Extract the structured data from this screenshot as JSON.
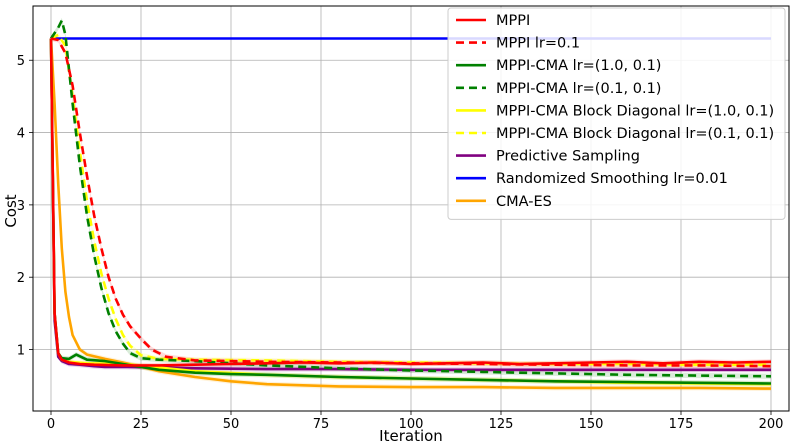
{
  "chart_data": {
    "type": "line",
    "title": "",
    "xlabel": "Iteration",
    "ylabel": "Cost",
    "xlim": [
      -5,
      205
    ],
    "ylim": [
      0.15,
      5.75
    ],
    "xticks": [
      0,
      25,
      50,
      75,
      100,
      125,
      150,
      175,
      200
    ],
    "yticks": [
      1,
      2,
      3,
      4,
      5
    ],
    "grid": true,
    "legend_position": "top-right",
    "series": [
      {
        "name": "MPPI",
        "color": "#ff0000",
        "dash": "solid",
        "x": [
          0,
          1,
          2,
          3,
          5,
          8,
          12,
          20,
          30,
          40,
          50,
          60,
          70,
          80,
          90,
          100,
          110,
          120,
          130,
          140,
          150,
          160,
          170,
          180,
          190,
          200
        ],
        "y": [
          5.3,
          1.5,
          0.95,
          0.86,
          0.82,
          0.8,
          0.79,
          0.78,
          0.78,
          0.79,
          0.8,
          0.81,
          0.82,
          0.81,
          0.82,
          0.8,
          0.81,
          0.82,
          0.8,
          0.81,
          0.82,
          0.83,
          0.81,
          0.83,
          0.82,
          0.83
        ]
      },
      {
        "name": "MPPI lr=0.1",
        "color": "#ff0000",
        "dash": "dashed",
        "x": [
          0,
          2,
          4,
          6,
          8,
          10,
          12,
          14,
          16,
          18,
          20,
          22,
          25,
          28,
          32,
          40,
          60,
          80,
          100,
          120,
          140,
          160,
          180,
          200
        ],
        "y": [
          5.3,
          5.28,
          5.1,
          4.65,
          4.0,
          3.4,
          2.85,
          2.4,
          2.0,
          1.7,
          1.48,
          1.32,
          1.15,
          1.0,
          0.9,
          0.85,
          0.83,
          0.82,
          0.81,
          0.8,
          0.79,
          0.78,
          0.78,
          0.77
        ]
      },
      {
        "name": "MPPI-CMA lr=(1.0, 0.1)",
        "color": "#008000",
        "dash": "solid",
        "x": [
          0,
          1,
          2,
          3,
          5,
          7,
          10,
          15,
          20,
          30,
          40,
          50,
          60,
          80,
          100,
          120,
          140,
          160,
          180,
          200
        ],
        "y": [
          5.3,
          1.5,
          0.95,
          0.88,
          0.87,
          0.93,
          0.86,
          0.84,
          0.8,
          0.72,
          0.68,
          0.66,
          0.65,
          0.62,
          0.6,
          0.58,
          0.56,
          0.55,
          0.54,
          0.53
        ]
      },
      {
        "name": "MPPI-CMA lr=(0.1, 0.1)",
        "color": "#008000",
        "dash": "dashed",
        "x": [
          0,
          2,
          3,
          4,
          6,
          8,
          10,
          12,
          14,
          16,
          18,
          20,
          22,
          25,
          30,
          40,
          60,
          80,
          100,
          120,
          140,
          160,
          180,
          200
        ],
        "y": [
          5.3,
          5.45,
          5.55,
          5.35,
          4.4,
          3.55,
          2.85,
          2.3,
          1.85,
          1.5,
          1.25,
          1.08,
          0.95,
          0.88,
          0.86,
          0.84,
          0.78,
          0.74,
          0.71,
          0.69,
          0.67,
          0.65,
          0.64,
          0.63
        ]
      },
      {
        "name": "MPPI-CMA Block Diagonal lr=(1.0, 0.1)",
        "color": "#ffff00",
        "dash": "solid",
        "x": [
          0,
          1,
          2,
          3,
          5,
          10,
          20,
          30,
          40,
          60,
          80,
          100,
          120,
          140,
          160,
          180,
          200
        ],
        "y": [
          5.3,
          1.5,
          0.95,
          0.86,
          0.83,
          0.81,
          0.8,
          0.75,
          0.7,
          0.65,
          0.62,
          0.6,
          0.58,
          0.56,
          0.54,
          0.53,
          0.52
        ]
      },
      {
        "name": "MPPI-CMA Block Diagonal lr=(0.1, 0.1)",
        "color": "#ffff00",
        "dash": "dashed",
        "x": [
          0,
          2,
          4,
          6,
          8,
          10,
          12,
          14,
          16,
          18,
          20,
          22,
          25,
          30,
          40,
          60,
          80,
          100,
          120,
          140,
          160,
          180,
          200
        ],
        "y": [
          5.3,
          5.35,
          5.2,
          4.5,
          3.75,
          3.05,
          2.5,
          2.05,
          1.7,
          1.42,
          1.2,
          1.05,
          0.92,
          0.87,
          0.86,
          0.85,
          0.83,
          0.82,
          0.81,
          0.8,
          0.8,
          0.79,
          0.79
        ]
      },
      {
        "name": "Predictive Sampling",
        "color": "#800080",
        "dash": "solid",
        "x": [
          0,
          1,
          2,
          3,
          5,
          8,
          10,
          12,
          15,
          20,
          30,
          40,
          60,
          80,
          100,
          120,
          140,
          160,
          180,
          200
        ],
        "y": [
          5.3,
          1.4,
          0.9,
          0.84,
          0.8,
          0.79,
          0.78,
          0.77,
          0.76,
          0.76,
          0.75,
          0.74,
          0.73,
          0.73,
          0.72,
          0.72,
          0.72,
          0.72,
          0.72,
          0.72
        ]
      },
      {
        "name": "Randomized Smoothing lr=0.01",
        "color": "#0000ff",
        "dash": "solid",
        "x": [
          0,
          200
        ],
        "y": [
          5.3,
          5.3
        ]
      },
      {
        "name": "CMA-ES",
        "color": "#ffa500",
        "dash": "solid",
        "x": [
          0,
          1,
          2,
          3,
          4,
          5,
          6,
          8,
          10,
          15,
          20,
          25,
          30,
          40,
          50,
          60,
          80,
          100,
          120,
          140,
          160,
          180,
          200
        ],
        "y": [
          5.3,
          4.4,
          3.3,
          2.4,
          1.8,
          1.45,
          1.2,
          1.0,
          0.93,
          0.87,
          0.82,
          0.76,
          0.7,
          0.62,
          0.56,
          0.52,
          0.49,
          0.48,
          0.48,
          0.47,
          0.47,
          0.47,
          0.46
        ]
      }
    ]
  }
}
